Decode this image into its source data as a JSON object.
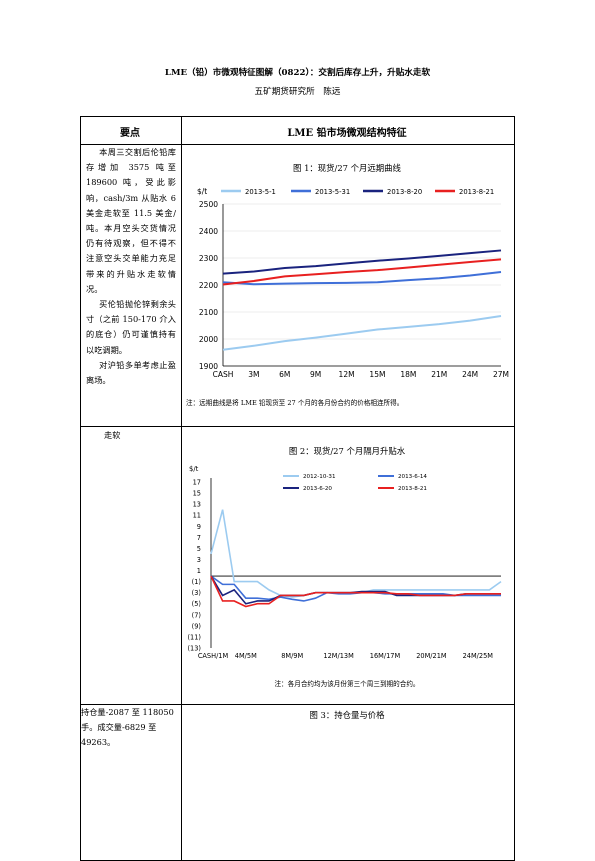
{
  "document": {
    "title": "LME（铅）市微观特征图解（0822）：交割后库存上升，升贴水走软",
    "subtitle": "五矿期货研究所　陈远"
  },
  "table": {
    "col1_header": "要点",
    "col2_header": "LME 铅市场微观结构特征",
    "row1_text_p1": "本周三交割后伦铅库存增加 3575 吨至 189600 吨，受此影响，cash/3m 从贴水 6 美金走软至 11.5 美金/吨。本月空头交货情况仍有待观察，但不得不注意空头交单能力充足带来的升贴水走软情况。",
    "row1_text_p2": "买伦铅抛伦锌剩余头寸（之前 150-170 介入的底仓）仍可谨慎持有以吃调期。",
    "row1_text_p3": "对沪铅多单考虑止盈离场。",
    "row2_text": "走软",
    "row3_text": "持仓量-2087 至 118050 手。成交量-6829 至 49263。"
  },
  "fig1": {
    "title": "图 1：现货/27 个月远期曲线",
    "note": "注：远期曲线是将 LME 铅现货至 27 个月的各月份合约的价格相连所得。"
  },
  "fig2": {
    "title": "图 2：现货/27 个月隔月升贴水",
    "note": "注：各月合约均为该月份第三个周三到期的合约。"
  },
  "fig3": {
    "title": "图 3：持仓量与价格"
  },
  "chart_data": [
    {
      "type": "line",
      "ylabel": "$/t",
      "ylim": [
        1900,
        2500
      ],
      "yticks": [
        1900,
        2000,
        2100,
        2200,
        2300,
        2400,
        2500
      ],
      "xticklabels": [
        "CASH",
        "3M",
        "6M",
        "9M",
        "12M",
        "15M",
        "18M",
        "21M",
        "24M",
        "27M"
      ],
      "x": [
        0,
        3,
        6,
        9,
        12,
        15,
        18,
        21,
        24,
        27
      ],
      "legend_position": "top",
      "series": [
        {
          "name": "2013-5-1",
          "color": "#9ccbf0",
          "values": [
            1960,
            1975,
            1992,
            2005,
            2020,
            2035,
            2045,
            2055,
            2068,
            2085
          ]
        },
        {
          "name": "2013-5-31",
          "color": "#3f6fd8",
          "values": [
            2210,
            2203,
            2205,
            2207,
            2208,
            2210,
            2218,
            2225,
            2235,
            2248
          ]
        },
        {
          "name": "2013-8-20",
          "color": "#1a237e",
          "values": [
            2242,
            2250,
            2263,
            2270,
            2280,
            2290,
            2298,
            2308,
            2318,
            2328
          ]
        },
        {
          "name": "2013-8-21",
          "color": "#e82020",
          "values": [
            2202,
            2215,
            2232,
            2240,
            2248,
            2255,
            2265,
            2275,
            2285,
            2295
          ]
        }
      ]
    },
    {
      "type": "line",
      "ylabel": "$/t",
      "ylim": [
        -13,
        17
      ],
      "yticks": [
        17,
        15,
        13,
        11,
        9,
        7,
        5,
        3,
        1,
        -1,
        -3,
        -5,
        -7,
        -9,
        -11,
        -13
      ],
      "yticklabels": [
        "17",
        "15",
        "13",
        "11",
        "9",
        "7",
        "5",
        "3",
        "1",
        "(1)",
        "(3)",
        "(5)",
        "(7)",
        "(9)",
        "(11)",
        "(13)"
      ],
      "xticklabels": [
        "CASH/1M",
        "4M/5M",
        "8M/9M",
        "12M/13M",
        "16M/17M",
        "20M/21M",
        "24M/25M"
      ],
      "xtickpos": [
        0,
        3,
        7,
        11,
        15,
        19,
        23
      ],
      "legend_position": "top",
      "series": [
        {
          "name": "2012-10-31",
          "color": "#9ccbf0",
          "values": [
            4,
            12,
            -1,
            -1,
            -1,
            -2.5,
            -3.5,
            -3.8,
            -3.5,
            -3,
            -3,
            -3,
            -3,
            -3,
            -2.5,
            -2.5,
            -2.5,
            -2.5,
            -2.5,
            -2.5,
            -2.5,
            -2.5,
            -2.5,
            -2.5,
            -2.5,
            -1
          ]
        },
        {
          "name": "2013-6-14",
          "color": "#3f6fd8",
          "values": [
            0,
            -1.5,
            -1.5,
            -4,
            -4,
            -4.2,
            -3.8,
            -4.2,
            -4.5,
            -4,
            -3,
            -3.2,
            -3.2,
            -3,
            -3,
            -3.2,
            -3.2,
            -3.2,
            -3.2,
            -3.2,
            -3.2,
            -3.5,
            -3.5,
            -3.5,
            -3.5,
            -3.5
          ]
        },
        {
          "name": "2013-6-20",
          "color": "#1a237e",
          "values": [
            0,
            -3.5,
            -2.5,
            -5,
            -4.5,
            -4.5,
            -3.5,
            -3.5,
            -3.5,
            -3,
            -3,
            -3,
            -3,
            -2.8,
            -2.8,
            -2.8,
            -3.5,
            -3.5,
            -3.5,
            -3.5,
            -3.5,
            -3.5,
            -3.2,
            -3.2,
            -3.2,
            -3.2
          ]
        },
        {
          "name": "2013-8-21",
          "color": "#e82020",
          "values": [
            0,
            -4.5,
            -4.5,
            -5.5,
            -5,
            -5,
            -3.5,
            -3.5,
            -3.5,
            -3,
            -3,
            -3,
            -3,
            -3,
            -3,
            -3,
            -3.2,
            -3.2,
            -3.5,
            -3.5,
            -3.5,
            -3.5,
            -3.2,
            -3.2,
            -3.2,
            -3.2
          ]
        }
      ]
    }
  ]
}
